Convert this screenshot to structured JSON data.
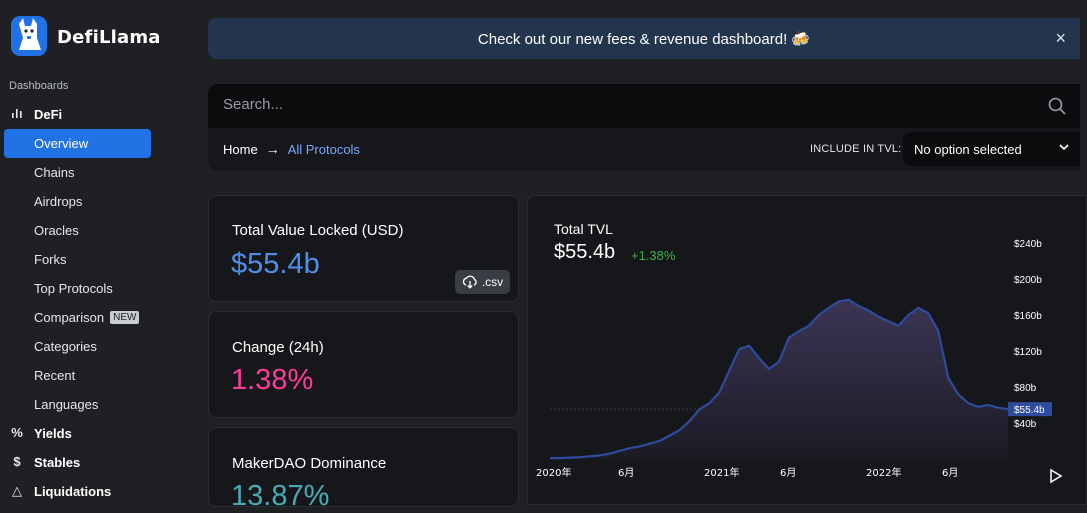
{
  "brand": {
    "name": "DefiLlama"
  },
  "sidebar": {
    "section_label": "Dashboards",
    "defi_label": "DeFi",
    "items": [
      {
        "label": "Overview"
      },
      {
        "label": "Chains"
      },
      {
        "label": "Airdrops"
      },
      {
        "label": "Oracles"
      },
      {
        "label": "Forks"
      },
      {
        "label": "Top Protocols"
      },
      {
        "label": "Comparison",
        "badge": "NEW"
      },
      {
        "label": "Categories"
      },
      {
        "label": "Recent"
      },
      {
        "label": "Languages"
      }
    ],
    "sections": [
      {
        "label": "Yields",
        "icon": "%"
      },
      {
        "label": "Stables",
        "icon": "$"
      },
      {
        "label": "Liquidations",
        "icon": "△"
      }
    ]
  },
  "banner": {
    "text": "Check out our new fees & revenue dashboard! 🍻",
    "close": "×"
  },
  "search": {
    "placeholder": "Search..."
  },
  "breadcrumb": {
    "home": "Home",
    "current": "All Protocols"
  },
  "tvl_filter": {
    "label": "INCLUDE IN TVL:",
    "value": "No option selected"
  },
  "stats": {
    "tvl": {
      "title": "Total Value Locked (USD)",
      "value": "$55.4b",
      "csv": ".csv",
      "color": "#4f8fea"
    },
    "change": {
      "title": "Change (24h)",
      "value": "1.38%",
      "color": "#fd3c99"
    },
    "dominance": {
      "title": "MakerDAO Dominance",
      "value": "13.87%",
      "color": "#46acb7"
    }
  },
  "chart": {
    "title": "Total TVL",
    "value": "$55.4b",
    "change": "+1.38%",
    "current_label": "$55.4b"
  },
  "chart_data": {
    "type": "area",
    "title": "Total TVL",
    "y_ticks": [
      "$240b",
      "$200b",
      "$160b",
      "$120b",
      "$80b",
      "$40b"
    ],
    "y_tick_values": [
      240,
      200,
      160,
      120,
      80,
      40
    ],
    "x_ticks": [
      "2020年",
      "6月",
      "2021年",
      "6月",
      "2022年",
      "6月"
    ],
    "ylim": [
      0,
      240
    ],
    "current_value": 55.4,
    "series": [
      {
        "values": [
          1,
          1,
          1.5,
          2,
          3,
          4,
          6,
          9,
          12,
          14,
          17,
          20,
          26,
          32,
          42,
          55,
          62,
          74,
          98,
          122,
          126,
          112,
          100,
          108,
          135,
          142,
          148,
          160,
          168,
          175,
          177,
          170,
          165,
          158,
          153,
          148,
          160,
          168,
          162,
          142,
          90,
          72,
          62,
          58,
          60,
          57,
          55.4
        ]
      }
    ],
    "colors": {
      "line": "#2f4b9e",
      "fill_top": "#3b3555",
      "fill_bottom": "#1c1b24",
      "current_marker": "#2f4b9e"
    }
  }
}
